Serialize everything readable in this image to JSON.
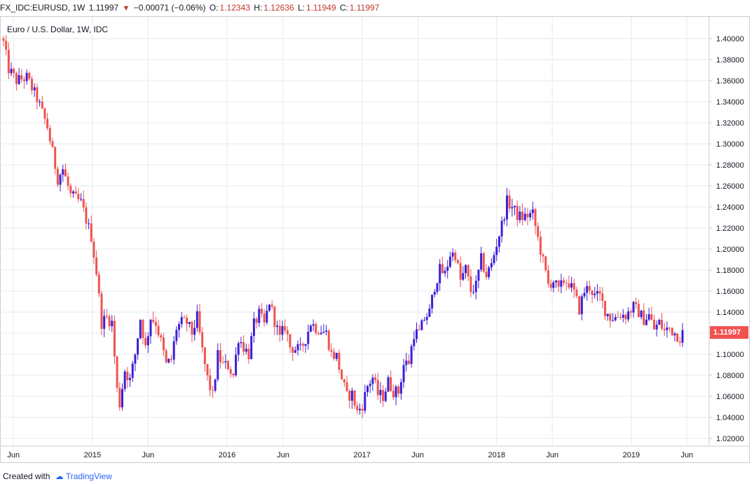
{
  "header": {
    "symbol": "FX_IDC:EURUSD, 1W",
    "last": "1.11997",
    "change": "−0.00071 (−0.06%)",
    "o_label": "O:",
    "o_value": "1.12343",
    "h_label": "H:",
    "h_value": "1.12636",
    "l_label": "L:",
    "l_value": "1.11949",
    "c_label": "C:",
    "c_value": "1.11997"
  },
  "footer": {
    "created_with": "Created with",
    "brand": "TradingView"
  },
  "chart_data": {
    "type": "candlestick",
    "title": "Euro / U.S. Dollar, 1W, IDC",
    "last_price_label": "1.11997",
    "y_ticks": [
      "1.40000",
      "1.38000",
      "1.36000",
      "1.34000",
      "1.32000",
      "1.30000",
      "1.28000",
      "1.26000",
      "1.24000",
      "1.22000",
      "1.20000",
      "1.18000",
      "1.16000",
      "1.14000",
      "1.12000",
      "1.10000",
      "1.08000",
      "1.06000",
      "1.04000",
      "1.02000"
    ],
    "x_ticks": [
      "Jun",
      "2015",
      "Jun",
      "2016",
      "Jun",
      "2017",
      "Jun",
      "2018",
      "Jun",
      "2019",
      "Jun"
    ],
    "ylim": [
      1.01,
      1.41
    ],
    "grid": true,
    "colors": {
      "up": "#3b1fd6",
      "down": "#ef5350",
      "grid": "#e6e9ef",
      "axis_text": "#131722"
    },
    "close_path": [
      [
        "2014-05-05",
        1.396
      ],
      [
        "2014-05-19",
        1.371
      ],
      [
        "2014-06-09",
        1.36
      ],
      [
        "2014-07-07",
        1.363
      ],
      [
        "2014-08-04",
        1.343
      ],
      [
        "2014-09-01",
        1.316
      ],
      [
        "2014-09-29",
        1.267
      ],
      [
        "2014-10-13",
        1.276
      ],
      [
        "2014-11-03",
        1.251
      ],
      [
        "2014-12-01",
        1.244
      ],
      [
        "2014-12-29",
        1.212
      ],
      [
        "2015-01-12",
        1.178
      ],
      [
        "2015-01-26",
        1.13
      ],
      [
        "2015-02-09",
        1.135
      ],
      [
        "2015-02-23",
        1.13
      ],
      [
        "2015-03-09",
        1.066
      ],
      [
        "2015-03-16",
        1.053
      ],
      [
        "2015-03-30",
        1.085
      ],
      [
        "2015-04-13",
        1.075
      ],
      [
        "2015-04-27",
        1.1
      ],
      [
        "2015-05-11",
        1.134
      ],
      [
        "2015-05-25",
        1.106
      ],
      [
        "2015-06-08",
        1.135
      ],
      [
        "2015-06-22",
        1.13
      ],
      [
        "2015-07-06",
        1.112
      ],
      [
        "2015-07-20",
        1.09
      ],
      [
        "2015-08-03",
        1.095
      ],
      [
        "2015-08-17",
        1.125
      ],
      [
        "2015-08-31",
        1.13
      ],
      [
        "2015-09-14",
        1.13
      ],
      [
        "2015-09-28",
        1.12
      ],
      [
        "2015-10-12",
        1.135
      ],
      [
        "2015-10-26",
        1.103
      ],
      [
        "2015-11-09",
        1.077
      ],
      [
        "2015-11-23",
        1.06
      ],
      [
        "2015-12-07",
        1.099
      ],
      [
        "2015-12-21",
        1.09
      ],
      [
        "2016-01-04",
        1.089
      ],
      [
        "2016-01-18",
        1.08
      ],
      [
        "2016-02-01",
        1.116
      ],
      [
        "2016-02-15",
        1.107
      ],
      [
        "2016-02-29",
        1.1
      ],
      [
        "2016-03-14",
        1.128
      ],
      [
        "2016-03-28",
        1.138
      ],
      [
        "2016-04-11",
        1.128
      ],
      [
        "2016-04-25",
        1.15
      ],
      [
        "2016-05-09",
        1.132
      ],
      [
        "2016-05-23",
        1.115
      ],
      [
        "2016-06-06",
        1.127
      ],
      [
        "2016-06-20",
        1.107
      ],
      [
        "2016-07-04",
        1.105
      ],
      [
        "2016-07-18",
        1.104
      ],
      [
        "2016-08-01",
        1.115
      ],
      [
        "2016-08-15",
        1.13
      ],
      [
        "2016-08-29",
        1.125
      ],
      [
        "2016-09-12",
        1.123
      ],
      [
        "2016-09-26",
        1.12
      ],
      [
        "2016-10-10",
        1.1
      ],
      [
        "2016-10-24",
        1.098
      ],
      [
        "2016-11-07",
        1.077
      ],
      [
        "2016-11-21",
        1.06
      ],
      [
        "2016-12-05",
        1.062
      ],
      [
        "2016-12-19",
        1.045
      ],
      [
        "2017-01-02",
        1.052
      ],
      [
        "2017-01-16",
        1.07
      ],
      [
        "2017-01-30",
        1.078
      ],
      [
        "2017-02-13",
        1.062
      ],
      [
        "2017-02-27",
        1.06
      ],
      [
        "2017-03-13",
        1.074
      ],
      [
        "2017-03-27",
        1.065
      ],
      [
        "2017-04-10",
        1.064
      ],
      [
        "2017-04-24",
        1.09
      ],
      [
        "2017-05-08",
        1.093
      ],
      [
        "2017-05-22",
        1.12
      ],
      [
        "2017-06-05",
        1.12
      ],
      [
        "2017-06-19",
        1.134
      ],
      [
        "2017-07-03",
        1.14
      ],
      [
        "2017-07-17",
        1.165
      ],
      [
        "2017-07-31",
        1.18
      ],
      [
        "2017-08-14",
        1.176
      ],
      [
        "2017-08-28",
        1.195
      ],
      [
        "2017-09-11",
        1.195
      ],
      [
        "2017-09-25",
        1.17
      ],
      [
        "2017-10-09",
        1.181
      ],
      [
        "2017-10-23",
        1.16
      ],
      [
        "2017-11-06",
        1.165
      ],
      [
        "2017-11-20",
        1.19
      ],
      [
        "2017-12-04",
        1.175
      ],
      [
        "2017-12-18",
        1.185
      ],
      [
        "2018-01-01",
        1.205
      ],
      [
        "2018-01-15",
        1.223
      ],
      [
        "2018-01-29",
        1.245
      ],
      [
        "2018-02-12",
        1.24
      ],
      [
        "2018-02-26",
        1.232
      ],
      [
        "2018-03-12",
        1.23
      ],
      [
        "2018-03-26",
        1.232
      ],
      [
        "2018-04-09",
        1.233
      ],
      [
        "2018-04-23",
        1.21
      ],
      [
        "2018-05-07",
        1.188
      ],
      [
        "2018-05-21",
        1.166
      ],
      [
        "2018-06-04",
        1.17
      ],
      [
        "2018-06-18",
        1.16
      ],
      [
        "2018-07-02",
        1.17
      ],
      [
        "2018-07-16",
        1.168
      ],
      [
        "2018-07-30",
        1.158
      ],
      [
        "2018-08-13",
        1.143
      ],
      [
        "2018-08-27",
        1.16
      ],
      [
        "2018-09-10",
        1.164
      ],
      [
        "2018-09-24",
        1.155
      ],
      [
        "2018-10-08",
        1.155
      ],
      [
        "2018-10-22",
        1.142
      ],
      [
        "2018-11-05",
        1.135
      ],
      [
        "2018-11-19",
        1.135
      ],
      [
        "2018-12-03",
        1.138
      ],
      [
        "2018-12-17",
        1.137
      ],
      [
        "2019-01-07",
        1.145
      ],
      [
        "2019-01-21",
        1.14
      ],
      [
        "2019-02-04",
        1.133
      ],
      [
        "2019-02-18",
        1.137
      ],
      [
        "2019-03-04",
        1.124
      ],
      [
        "2019-03-18",
        1.13
      ],
      [
        "2019-04-01",
        1.122
      ],
      [
        "2019-04-15",
        1.125
      ],
      [
        "2019-04-29",
        1.12
      ],
      [
        "2019-05-13",
        1.116
      ],
      [
        "2019-05-20",
        1.12
      ]
    ]
  }
}
